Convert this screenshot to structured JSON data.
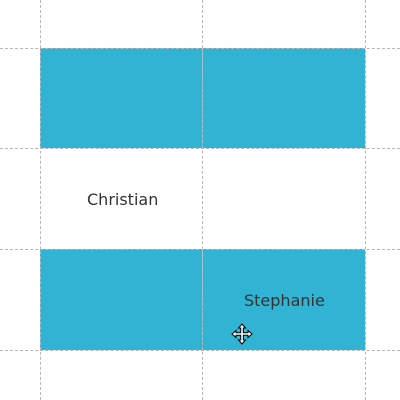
{
  "grid": {
    "cells": [
      {
        "id": "r1c1",
        "text": "",
        "color": "#31b3d4"
      },
      {
        "id": "r1c2",
        "text": "",
        "color": "#31b3d4"
      },
      {
        "id": "r2c1",
        "text": "Christian",
        "color": "#ffffff"
      },
      {
        "id": "r2c2",
        "text": "",
        "color": "#ffffff"
      },
      {
        "id": "r3c1",
        "text": "",
        "color": "#31b3d4"
      },
      {
        "id": "r3c2",
        "text": "Stephanie",
        "color": "#31b3d4"
      }
    ]
  },
  "cursor": {
    "icon": "move-cursor-icon"
  },
  "colors": {
    "cell_fill": "#31b3d4",
    "gridline": "#b8b8b8",
    "text": "#333333"
  }
}
